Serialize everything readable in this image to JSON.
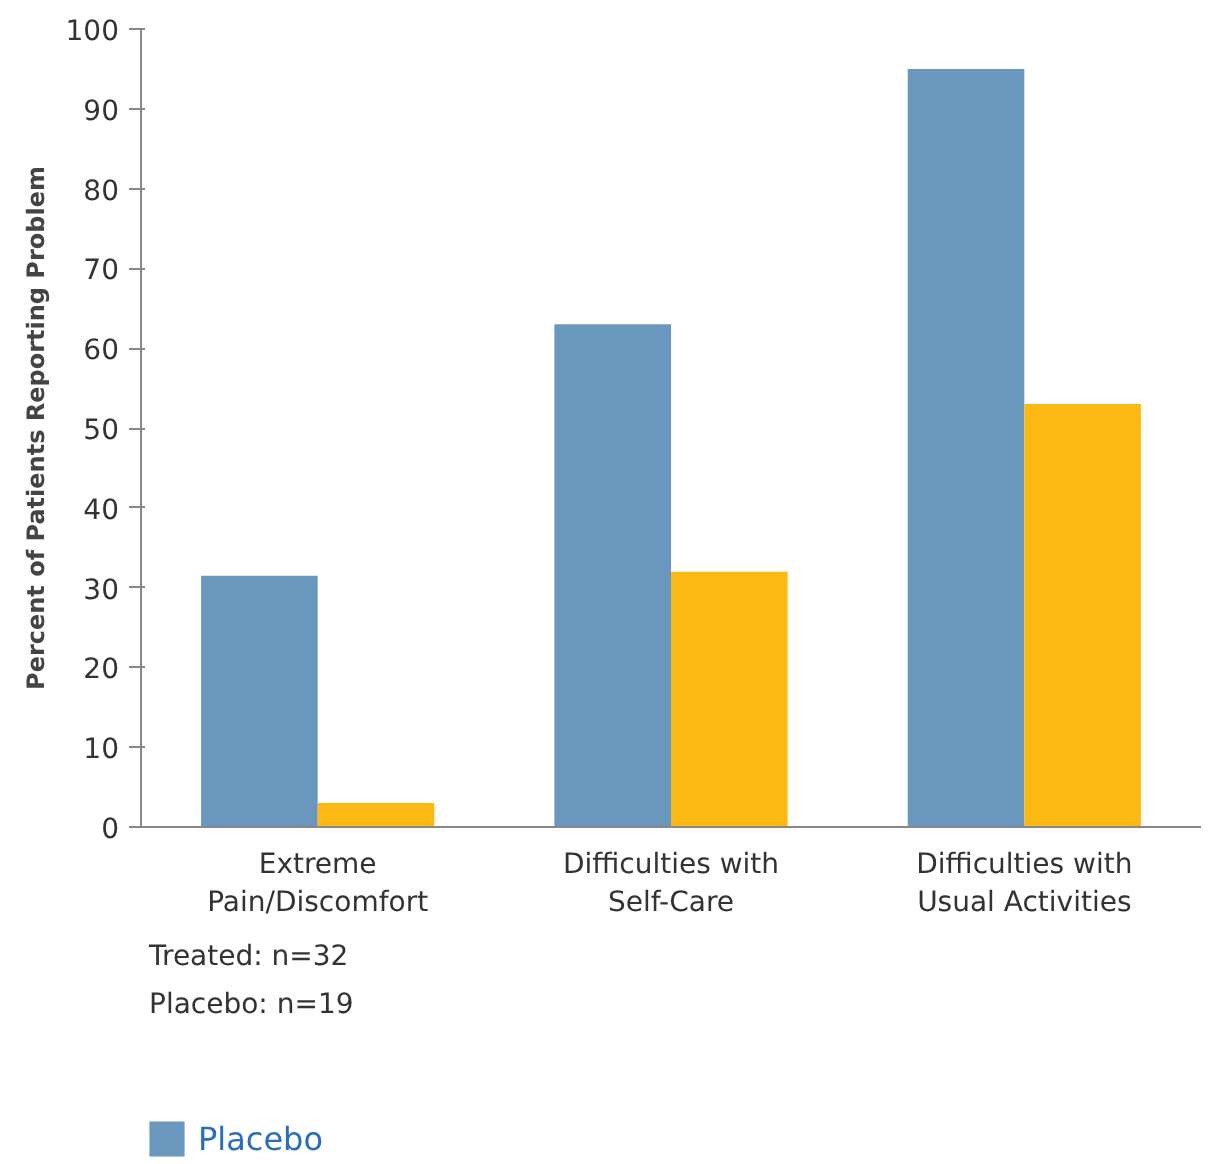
{
  "chart_data": {
    "type": "bar",
    "ylabel": "Percent of Patients Reporting Problem",
    "categories": [
      "Extreme\nPain/Discomfort",
      "Difficulties with\nSelf-Care",
      "Difficulties with\nUsual Activities"
    ],
    "series": [
      {
        "name": "Placebo",
        "color": "#6a97bd",
        "values": [
          31.5,
          63,
          95
        ]
      },
      {
        "color": "#fdb913",
        "values": [
          3,
          32,
          53
        ]
      }
    ],
    "ylim": [
      0,
      100
    ],
    "yticks": [
      0,
      10,
      20,
      30,
      40,
      50,
      60,
      70,
      80,
      90,
      100
    ],
    "grid": false,
    "legend": "bottom left",
    "annotations": [
      "Treated: n=32",
      "Placebo: n=19"
    ]
  }
}
